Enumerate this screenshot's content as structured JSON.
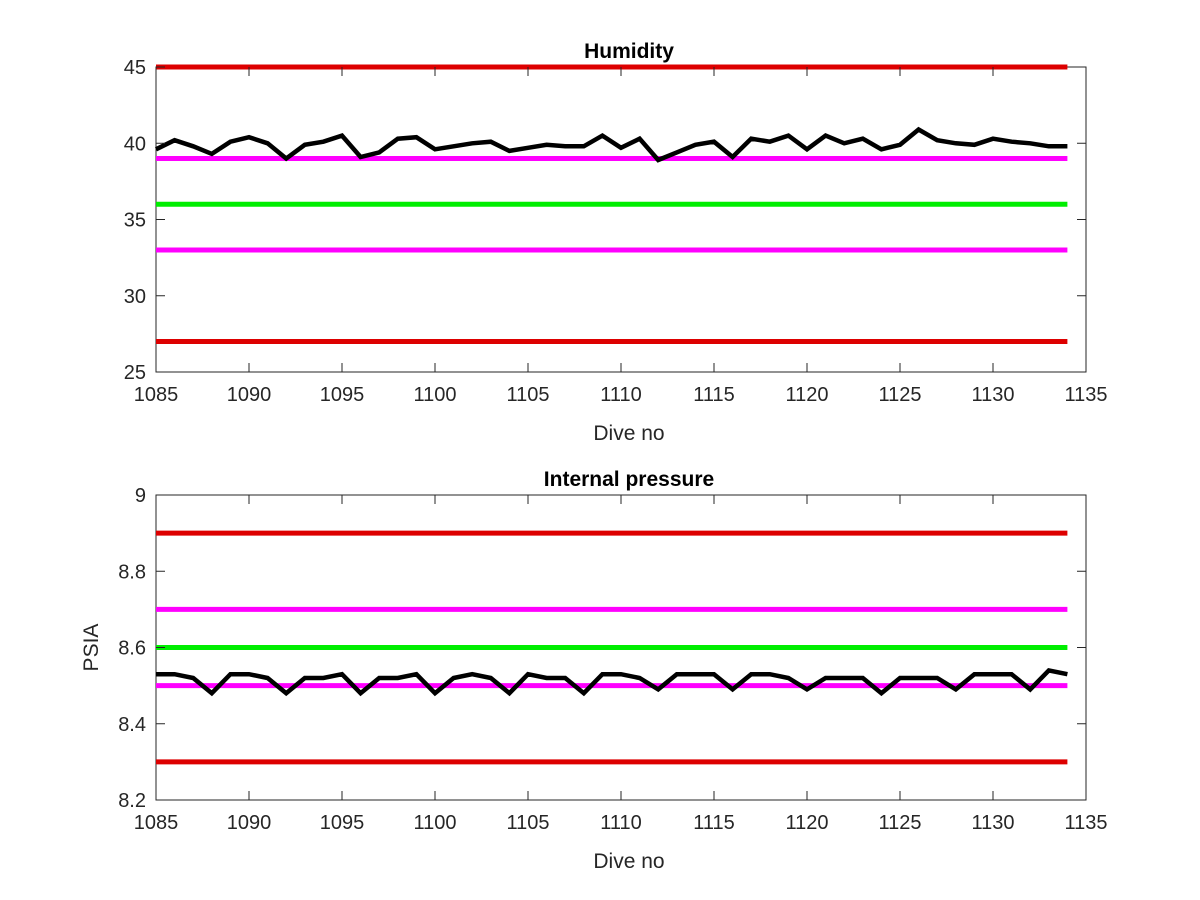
{
  "chart_data": [
    {
      "type": "line",
      "title": "Humidity",
      "xlabel": "Dive no",
      "ylabel": "",
      "xlim": [
        1085,
        1135
      ],
      "ylim": [
        25,
        45
      ],
      "xticks": [
        1085,
        1090,
        1095,
        1100,
        1105,
        1110,
        1115,
        1120,
        1125,
        1130,
        1135
      ],
      "yticks": [
        25,
        30,
        35,
        40,
        45
      ],
      "xtick_labels": [
        "1085",
        "1090",
        "1095",
        "1100",
        "1105",
        "1110",
        "1115",
        "1120",
        "1125",
        "1130",
        "1135"
      ],
      "ytick_labels": [
        "25",
        "30",
        "35",
        "40",
        "45"
      ],
      "grid": false,
      "reference_lines": [
        {
          "y": 45,
          "color": "#dd0000"
        },
        {
          "y": 39,
          "color": "#ff00ff"
        },
        {
          "y": 36,
          "color": "#00ee00"
        },
        {
          "y": 33,
          "color": "#ff00ff"
        },
        {
          "y": 27,
          "color": "#dd0000"
        }
      ],
      "series": [
        {
          "color": "#000000",
          "x": [
            1085,
            1086,
            1087,
            1088,
            1089,
            1090,
            1091,
            1092,
            1093,
            1094,
            1095,
            1096,
            1097,
            1098,
            1099,
            1100,
            1101,
            1102,
            1103,
            1104,
            1105,
            1106,
            1107,
            1108,
            1109,
            1110,
            1111,
            1112,
            1113,
            1114,
            1115,
            1116,
            1117,
            1118,
            1119,
            1120,
            1121,
            1122,
            1123,
            1124,
            1125,
            1126,
            1127,
            1128,
            1129,
            1130,
            1131,
            1132,
            1133,
            1134
          ],
          "values": [
            39.6,
            40.2,
            39.8,
            39.3,
            40.1,
            40.4,
            40.0,
            39.0,
            39.9,
            40.1,
            40.5,
            39.1,
            39.4,
            40.3,
            40.4,
            39.6,
            39.8,
            40.0,
            40.1,
            39.5,
            39.7,
            39.9,
            39.8,
            39.8,
            40.5,
            39.7,
            40.3,
            38.9,
            39.4,
            39.9,
            40.1,
            39.1,
            40.3,
            40.1,
            40.5,
            39.6,
            40.5,
            40.0,
            40.3,
            39.6,
            39.9,
            40.9,
            40.2,
            40.0,
            39.9,
            40.3,
            40.1,
            40.0,
            39.8,
            39.8
          ]
        }
      ]
    },
    {
      "type": "line",
      "title": "Internal pressure",
      "xlabel": "Dive no",
      "ylabel": "PSIA",
      "xlim": [
        1085,
        1135
      ],
      "ylim": [
        8.2,
        9.0
      ],
      "xticks": [
        1085,
        1090,
        1095,
        1100,
        1105,
        1110,
        1115,
        1120,
        1125,
        1130,
        1135
      ],
      "yticks": [
        8.2,
        8.4,
        8.6,
        8.8,
        9.0
      ],
      "xtick_labels": [
        "1085",
        "1090",
        "1095",
        "1100",
        "1105",
        "1110",
        "1115",
        "1120",
        "1125",
        "1130",
        "1135"
      ],
      "ytick_labels": [
        "8.2",
        "8.4",
        "8.6",
        "8.8",
        "9"
      ],
      "grid": false,
      "reference_lines": [
        {
          "y": 8.9,
          "color": "#dd0000"
        },
        {
          "y": 8.7,
          "color": "#ff00ff"
        },
        {
          "y": 8.6,
          "color": "#00ee00"
        },
        {
          "y": 8.5,
          "color": "#ff00ff"
        },
        {
          "y": 8.3,
          "color": "#dd0000"
        }
      ],
      "series": [
        {
          "color": "#000000",
          "x": [
            1085,
            1086,
            1087,
            1088,
            1089,
            1090,
            1091,
            1092,
            1093,
            1094,
            1095,
            1096,
            1097,
            1098,
            1099,
            1100,
            1101,
            1102,
            1103,
            1104,
            1105,
            1106,
            1107,
            1108,
            1109,
            1110,
            1111,
            1112,
            1113,
            1114,
            1115,
            1116,
            1117,
            1118,
            1119,
            1120,
            1121,
            1122,
            1123,
            1124,
            1125,
            1126,
            1127,
            1128,
            1129,
            1130,
            1131,
            1132,
            1133,
            1134
          ],
          "values": [
            8.53,
            8.53,
            8.52,
            8.48,
            8.53,
            8.53,
            8.52,
            8.48,
            8.52,
            8.52,
            8.53,
            8.48,
            8.52,
            8.52,
            8.53,
            8.48,
            8.52,
            8.53,
            8.52,
            8.48,
            8.53,
            8.52,
            8.52,
            8.48,
            8.53,
            8.53,
            8.52,
            8.49,
            8.53,
            8.53,
            8.53,
            8.49,
            8.53,
            8.53,
            8.52,
            8.49,
            8.52,
            8.52,
            8.52,
            8.48,
            8.52,
            8.52,
            8.52,
            8.49,
            8.53,
            8.53,
            8.53,
            8.49,
            8.54,
            8.53
          ]
        }
      ]
    }
  ]
}
